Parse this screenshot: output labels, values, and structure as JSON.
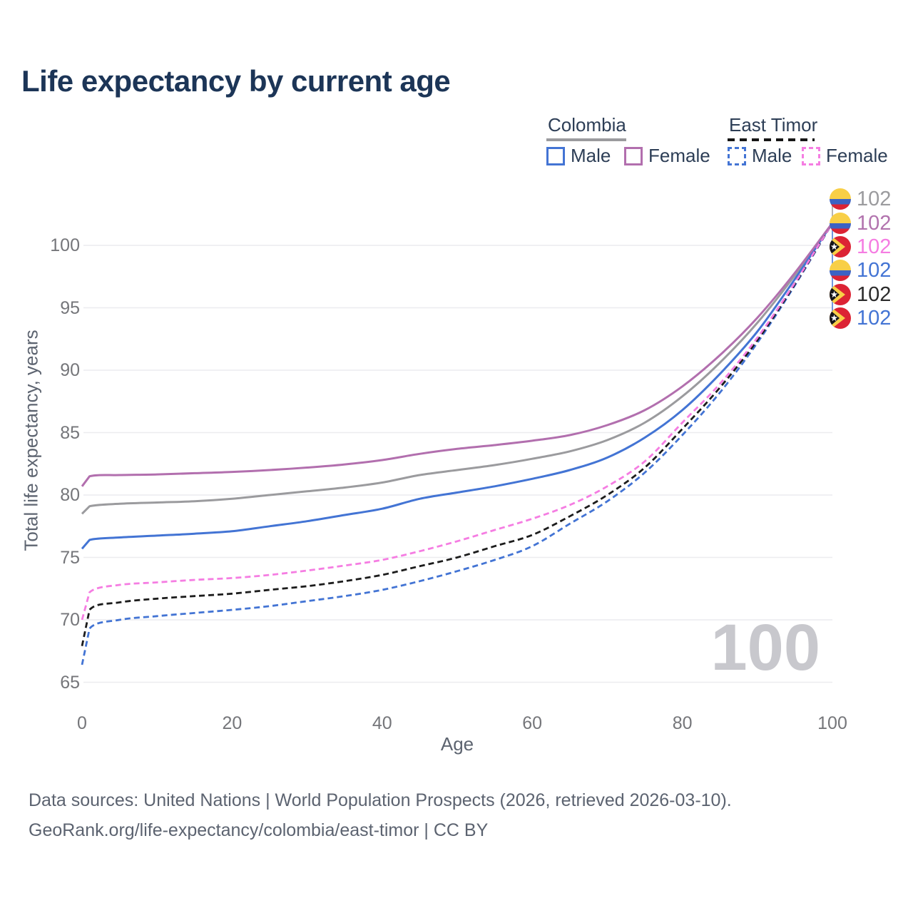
{
  "title": "Life expectancy by current age",
  "legend": {
    "groups": [
      {
        "label": "Colombia",
        "line_style": "solid",
        "underline_color": "#9b9b9e",
        "items": [
          {
            "label": "Male",
            "color": "#4374d4",
            "dashed": false
          },
          {
            "label": "Female",
            "color": "#b26fae",
            "dashed": false
          }
        ]
      },
      {
        "label": "East Timor",
        "line_style": "dashed",
        "underline_color": "#161616",
        "items": [
          {
            "label": "Male",
            "color": "#4374d4",
            "dashed": true
          },
          {
            "label": "Female",
            "color": "#f57de2",
            "dashed": true
          }
        ]
      }
    ]
  },
  "age_watermark": "100",
  "footer": {
    "line1": "Data sources: United Nations | World Population Prospects (2026, retrieved 2026-03-10).",
    "line2": "GeoRank.org/life-expectancy/colombia/east-timor | CC BY"
  },
  "chart_data": {
    "type": "line",
    "title": "Life expectancy by current age",
    "xlabel": "Age",
    "ylabel": "Total life expectancy, years",
    "xlim": [
      0,
      100
    ],
    "ylim": [
      65,
      102
    ],
    "xticks": [
      "0",
      "20",
      "40",
      "60",
      "80",
      "100"
    ],
    "xtick_values": [
      0,
      20,
      40,
      60,
      80,
      100
    ],
    "yticks": [
      "65",
      "70",
      "75",
      "80",
      "85",
      "90",
      "95",
      "100"
    ],
    "ytick_values": [
      65,
      70,
      75,
      80,
      85,
      90,
      95,
      100
    ],
    "grid": "horizontal",
    "grid_color": "#ececef",
    "legend_position": "top-right",
    "x": [
      0,
      1,
      5,
      10,
      15,
      20,
      25,
      30,
      35,
      40,
      45,
      50,
      55,
      60,
      65,
      70,
      75,
      80,
      85,
      90,
      95,
      100
    ],
    "series": [
      {
        "name": "Colombia (both sexes)",
        "color": "#9b9b9e",
        "dashed": false,
        "flag": "colombia",
        "end_label": "102",
        "end_label_color": "#9b9b9e",
        "end_label_y": 278,
        "values": [
          78.5,
          79.1,
          79.3,
          79.4,
          79.5,
          79.7,
          80.0,
          80.3,
          80.6,
          81.0,
          81.6,
          82.0,
          82.4,
          82.9,
          83.5,
          84.4,
          85.8,
          87.9,
          90.6,
          93.8,
          97.6,
          101.8
        ]
      },
      {
        "name": "Colombia Female",
        "color": "#b26fae",
        "dashed": false,
        "flag": "colombia",
        "end_label": "102",
        "end_label_color": "#b273ae",
        "end_label_y": 312,
        "values": [
          80.7,
          81.5,
          81.6,
          81.65,
          81.75,
          81.85,
          82.0,
          82.2,
          82.45,
          82.8,
          83.3,
          83.7,
          84.0,
          84.35,
          84.8,
          85.6,
          86.8,
          88.7,
          91.2,
          94.2,
          97.8,
          101.8
        ]
      },
      {
        "name": "East Timor Female",
        "color": "#f57de2",
        "dashed": true,
        "flag": "east-timor",
        "end_label": "102",
        "end_label_color": "#f57de2",
        "end_label_y": 345,
        "values": [
          70.0,
          72.2,
          72.8,
          73.0,
          73.2,
          73.35,
          73.6,
          73.95,
          74.35,
          74.8,
          75.5,
          76.3,
          77.2,
          78.1,
          79.2,
          80.7,
          82.7,
          85.8,
          88.9,
          92.6,
          97.0,
          101.8
        ]
      },
      {
        "name": "Colombia Male",
        "color": "#4374d4",
        "dashed": false,
        "flag": "colombia",
        "end_label": "102",
        "end_label_color": "#4374d4",
        "end_label_y": 378,
        "values": [
          75.7,
          76.4,
          76.6,
          76.75,
          76.9,
          77.1,
          77.5,
          77.9,
          78.4,
          78.9,
          79.7,
          80.2,
          80.7,
          81.3,
          82.0,
          83.0,
          84.6,
          86.8,
          89.7,
          93.1,
          97.3,
          101.8
        ]
      },
      {
        "name": "East Timor (both sexes)",
        "color": "#1c1c1c",
        "dashed": true,
        "flag": "east-timor",
        "end_label": "102",
        "end_label_color": "#2b2b2b",
        "end_label_y": 412,
        "values": [
          67.9,
          70.8,
          71.4,
          71.7,
          71.9,
          72.1,
          72.4,
          72.7,
          73.1,
          73.6,
          74.3,
          75.0,
          75.9,
          76.8,
          78.3,
          80.0,
          82.2,
          85.3,
          88.6,
          92.4,
          96.9,
          101.8
        ]
      },
      {
        "name": "East Timor Male",
        "color": "#4374d4",
        "dashed": true,
        "flag": "east-timor",
        "end_label": "102",
        "end_label_color": "#4374d4",
        "end_label_y": 445,
        "values": [
          66.4,
          69.3,
          70.0,
          70.3,
          70.55,
          70.8,
          71.1,
          71.5,
          71.9,
          72.4,
          73.1,
          73.9,
          74.8,
          75.9,
          77.7,
          79.5,
          81.8,
          84.8,
          88.2,
          92.2,
          96.8,
          101.8
        ]
      }
    ]
  }
}
